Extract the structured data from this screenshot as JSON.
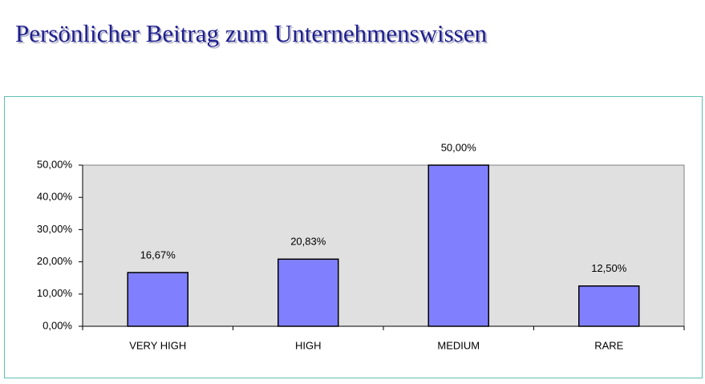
{
  "chart_data": {
    "type": "bar",
    "title": "Persönlicher Beitrag zum Unternehmenswissen",
    "categories": [
      "VERY HIGH",
      "HIGH",
      "MEDIUM",
      "RARE"
    ],
    "values": [
      16.67,
      20.83,
      50,
      12.5
    ],
    "value_labels": [
      "16,67%",
      "20,83%",
      "50,00%",
      "12,50%"
    ],
    "color": "#8080ff",
    "ylim": [
      0,
      50
    ],
    "yticks": [
      {
        "value": 0,
        "label": "0,00%"
      },
      {
        "value": 10,
        "label": "10,00%"
      },
      {
        "value": 20,
        "label": "20,00%"
      },
      {
        "value": 30,
        "label": "30,00%"
      },
      {
        "value": 40,
        "label": "40,00%"
      },
      {
        "value": 50,
        "label": "50,00%"
      }
    ]
  }
}
